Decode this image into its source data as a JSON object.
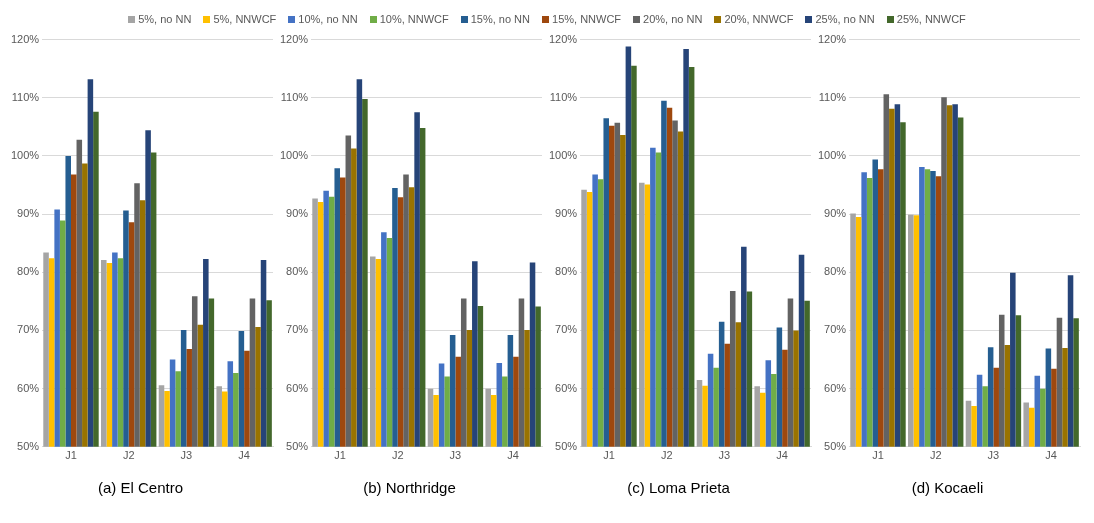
{
  "chart_data": [
    {
      "type": "bar",
      "title": "(a) El Centro",
      "categories": [
        "J1",
        "J2",
        "J3",
        "J4"
      ],
      "legend": "top",
      "grid": "y",
      "ylim": [
        50,
        120
      ],
      "yticks": [
        {
          "value": 50,
          "label": "50%"
        },
        {
          "value": 60,
          "label": "60%"
        },
        {
          "value": 70,
          "label": "70%"
        },
        {
          "value": 80,
          "label": "80%"
        },
        {
          "value": 90,
          "label": "90%"
        },
        {
          "value": 100,
          "label": "100%"
        },
        {
          "value": 110,
          "label": "110%"
        },
        {
          "value": 120,
          "label": "120%"
        }
      ],
      "series": [
        {
          "name": "5%, no NN",
          "color": "#a5a5a5",
          "values": [
            83.4,
            82.1,
            60.6,
            60.4
          ]
        },
        {
          "name": "5%, NNWCF",
          "color": "#ffc000",
          "values": [
            82.4,
            81.6,
            59.6,
            59.5
          ]
        },
        {
          "name": "10%, no NN",
          "color": "#4472c4",
          "values": [
            90.8,
            83.4,
            65.0,
            64.7
          ]
        },
        {
          "name": "10%, NNWCF",
          "color": "#70ad47",
          "values": [
            88.9,
            82.4,
            63.0,
            62.7
          ]
        },
        {
          "name": "15%, no NN",
          "color": "#255e91",
          "values": [
            100.0,
            90.6,
            70.1,
            69.9
          ]
        },
        {
          "name": "15%, NNWCF",
          "color": "#9e480e",
          "values": [
            96.8,
            88.6,
            66.8,
            66.5
          ]
        },
        {
          "name": "20%, no NN",
          "color": "#636363",
          "values": [
            102.8,
            95.3,
            75.9,
            75.5
          ]
        },
        {
          "name": "20%, NNWCF",
          "color": "#997300",
          "values": [
            98.7,
            92.4,
            71.0,
            70.6
          ]
        },
        {
          "name": "25%, no NN",
          "color": "#264478",
          "values": [
            113.2,
            104.4,
            82.3,
            82.1
          ]
        },
        {
          "name": "25%, NNWCF",
          "color": "#43682b",
          "values": [
            107.6,
            100.6,
            75.5,
            75.2
          ]
        }
      ]
    },
    {
      "type": "bar",
      "title": "(b) Northridge",
      "categories": [
        "J1",
        "J2",
        "J3",
        "J4"
      ],
      "grid": "y",
      "ylim": [
        50,
        120
      ],
      "yticks": [
        {
          "value": 50,
          "label": "50%"
        },
        {
          "value": 60,
          "label": "60%"
        },
        {
          "value": 70,
          "label": "70%"
        },
        {
          "value": 80,
          "label": "80%"
        },
        {
          "value": 90,
          "label": "90%"
        },
        {
          "value": 100,
          "label": "100%"
        },
        {
          "value": 110,
          "label": "110%"
        },
        {
          "value": 120,
          "label": "120%"
        }
      ],
      "series": [
        {
          "color": "#a5a5a5",
          "values": [
            92.7,
            82.7,
            60.0,
            60.0
          ]
        },
        {
          "color": "#ffc000",
          "values": [
            92.1,
            82.3,
            58.9,
            58.9
          ]
        },
        {
          "color": "#4472c4",
          "values": [
            94.0,
            86.9,
            64.3,
            64.4
          ]
        },
        {
          "color": "#70ad47",
          "values": [
            93.0,
            85.9,
            62.1,
            62.1
          ]
        },
        {
          "color": "#255e91",
          "values": [
            97.9,
            94.5,
            69.2,
            69.2
          ]
        },
        {
          "color": "#9e480e",
          "values": [
            96.3,
            92.9,
            65.5,
            65.5
          ]
        },
        {
          "color": "#636363",
          "values": [
            103.5,
            96.8,
            75.5,
            75.5
          ]
        },
        {
          "color": "#997300",
          "values": [
            101.3,
            94.6,
            70.1,
            70.1
          ]
        },
        {
          "color": "#264478",
          "values": [
            113.2,
            107.5,
            81.9,
            81.7
          ]
        },
        {
          "color": "#43682b",
          "values": [
            109.8,
            104.8,
            74.2,
            74.1
          ]
        }
      ]
    },
    {
      "type": "bar",
      "title": "(c) Loma Prieta",
      "categories": [
        "J1",
        "J2",
        "J3",
        "J4"
      ],
      "grid": "y",
      "ylim": [
        50,
        120
      ],
      "yticks": [
        {
          "value": 50,
          "label": "50%"
        },
        {
          "value": 60,
          "label": "60%"
        },
        {
          "value": 70,
          "label": "70%"
        },
        {
          "value": 80,
          "label": "80%"
        },
        {
          "value": 90,
          "label": "90%"
        },
        {
          "value": 100,
          "label": "100%"
        },
        {
          "value": 110,
          "label": "110%"
        },
        {
          "value": 120,
          "label": "120%"
        }
      ],
      "series": [
        {
          "color": "#a5a5a5",
          "values": [
            94.2,
            95.4,
            61.5,
            60.4
          ]
        },
        {
          "color": "#ffc000",
          "values": [
            93.8,
            95.1,
            60.5,
            59.3
          ]
        },
        {
          "color": "#4472c4",
          "values": [
            96.8,
            101.4,
            66.0,
            64.9
          ]
        },
        {
          "color": "#70ad47",
          "values": [
            96.0,
            100.6,
            63.6,
            62.5
          ]
        },
        {
          "color": "#255e91",
          "values": [
            106.5,
            109.5,
            71.5,
            70.5
          ]
        },
        {
          "color": "#9e480e",
          "values": [
            105.2,
            108.3,
            67.7,
            66.7
          ]
        },
        {
          "color": "#636363",
          "values": [
            105.7,
            106.1,
            76.8,
            75.5
          ]
        },
        {
          "color": "#997300",
          "values": [
            103.6,
            104.2,
            71.4,
            70.0
          ]
        },
        {
          "color": "#264478",
          "values": [
            118.8,
            118.4,
            84.4,
            83.0
          ]
        },
        {
          "color": "#43682b",
          "values": [
            115.5,
            115.3,
            76.7,
            75.1
          ]
        }
      ]
    },
    {
      "type": "bar",
      "title": "(d) Kocaeli",
      "categories": [
        "J1",
        "J2",
        "J3",
        "J4"
      ],
      "grid": "y",
      "ylim": [
        50,
        120
      ],
      "yticks": [
        {
          "value": 50,
          "label": "50%"
        },
        {
          "value": 60,
          "label": "60%"
        },
        {
          "value": 70,
          "label": "70%"
        },
        {
          "value": 80,
          "label": "80%"
        },
        {
          "value": 90,
          "label": "90%"
        },
        {
          "value": 100,
          "label": "100%"
        },
        {
          "value": 110,
          "label": "110%"
        },
        {
          "value": 120,
          "label": "120%"
        }
      ],
      "series": [
        {
          "color": "#a5a5a5",
          "values": [
            90.1,
            89.9,
            57.9,
            57.6
          ]
        },
        {
          "color": "#ffc000",
          "values": [
            89.5,
            89.8,
            57.0,
            56.7
          ]
        },
        {
          "color": "#4472c4",
          "values": [
            97.2,
            98.1,
            62.4,
            62.2
          ]
        },
        {
          "color": "#70ad47",
          "values": [
            96.2,
            97.7,
            60.4,
            60.0
          ]
        },
        {
          "color": "#255e91",
          "values": [
            99.4,
            97.4,
            67.1,
            66.9
          ]
        },
        {
          "color": "#9e480e",
          "values": [
            97.7,
            96.5,
            63.6,
            63.4
          ]
        },
        {
          "color": "#636363",
          "values": [
            110.6,
            110.1,
            72.7,
            72.2
          ]
        },
        {
          "color": "#997300",
          "values": [
            108.1,
            108.7,
            67.5,
            67.0
          ]
        },
        {
          "color": "#264478",
          "values": [
            108.9,
            108.9,
            79.9,
            79.5
          ]
        },
        {
          "color": "#43682b",
          "values": [
            105.8,
            106.6,
            72.6,
            72.1
          ]
        }
      ]
    }
  ]
}
